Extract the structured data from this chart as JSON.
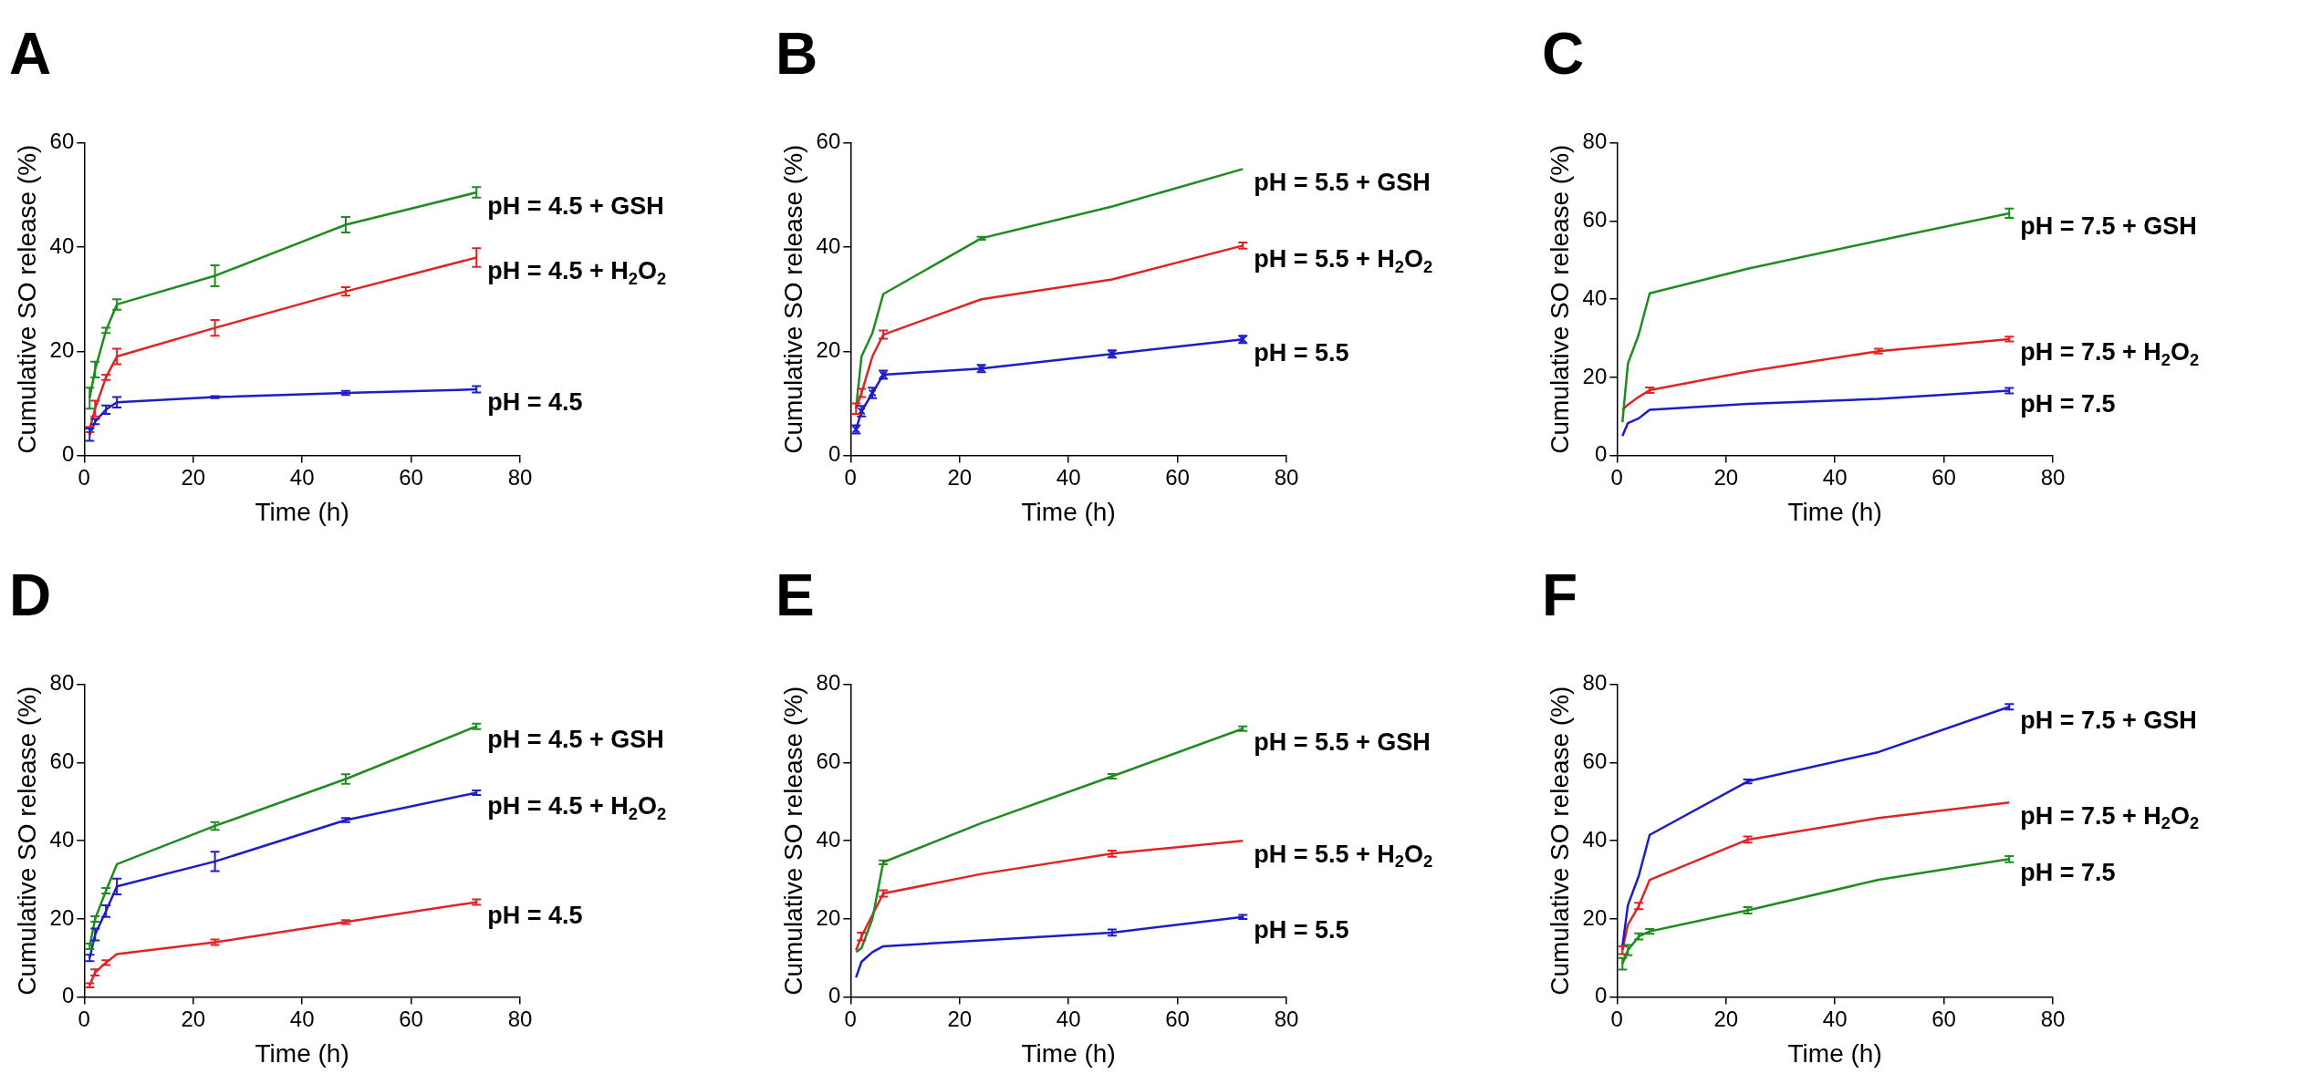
{
  "chart_data": [
    {
      "type": "line",
      "title": "A",
      "xlabel": "Time (h)",
      "ylabel": "Cumulative SO release (%)",
      "x": [
        1,
        2,
        4,
        6,
        24,
        48,
        72
      ],
      "xlim": [
        0,
        80
      ],
      "xticks": [
        0,
        20,
        40,
        60,
        80
      ],
      "ylim": [
        0,
        60
      ],
      "yticks": [
        0,
        20,
        40,
        60
      ],
      "grid": false,
      "legend": false,
      "series": [
        {
          "name": "pH = 4.5 + GSH",
          "color": "#1f8c1f",
          "values": [
            11,
            16.5,
            24,
            29,
            34.5,
            44.3,
            50.5
          ],
          "errors": [
            2,
            1.5,
            0.5,
            1,
            2,
            1.5,
            1
          ]
        },
        {
          "name": "pH = 4.5 + H$_{2}$O$_{2}$",
          "color": "#e02424",
          "values": [
            5,
            9,
            15,
            19,
            24.5,
            31.5,
            38
          ],
          "errors": [
            0.5,
            1.5,
            0.5,
            1.5,
            1.5,
            0.8,
            1.8
          ]
        },
        {
          "name": "pH = 4.5",
          "color": "#1c1cc8",
          "values": [
            4,
            6.5,
            8.8,
            10.2,
            11.2,
            12,
            12.7
          ],
          "errors": [
            1.2,
            0.5,
            0.8,
            1,
            0.2,
            0.4,
            0.6
          ]
        }
      ]
    },
    {
      "type": "line",
      "title": "B",
      "xlabel": "Time (h)",
      "ylabel": "Cumulative SO release (%)",
      "x": [
        1,
        2,
        4,
        6,
        24,
        48,
        72
      ],
      "xlim": [
        0,
        80
      ],
      "xticks": [
        0,
        20,
        40,
        60,
        80
      ],
      "ylim": [
        0,
        60
      ],
      "yticks": [
        0,
        20,
        40,
        60
      ],
      "grid": false,
      "legend": false,
      "series": [
        {
          "name": "pH = 5.5 + GSH",
          "color": "#1f8c1f",
          "values": [
            9,
            19,
            23.5,
            31,
            41.7,
            47.8,
            55
          ],
          "errors": [
            null,
            null,
            null,
            null,
            0.3,
            null,
            null
          ]
        },
        {
          "name": "pH = 5.5 + H$_{2}$O$_{2}$",
          "color": "#e02424",
          "values": [
            9,
            12,
            19,
            23.2,
            30,
            33.8,
            40.3
          ],
          "errors": [
            1,
            0.8,
            null,
            0.8,
            null,
            null,
            0.6
          ]
        },
        {
          "name": "pH = 5.5",
          "color": "#1c1cc8",
          "marker": "cross",
          "values": [
            5,
            8.5,
            12,
            15.5,
            16.7,
            19.5,
            22.3
          ],
          "errors": [
            0.8,
            1,
            1,
            0.8,
            0.7,
            0.7,
            0.7
          ]
        }
      ]
    },
    {
      "type": "line",
      "title": "C",
      "xlabel": "Time (h)",
      "ylabel": "Cumulative SO release (%)",
      "x": [
        1,
        2,
        4,
        6,
        24,
        48,
        72
      ],
      "xlim": [
        0,
        80
      ],
      "xticks": [
        0,
        20,
        40,
        60,
        80
      ],
      "ylim": [
        0,
        80
      ],
      "yticks": [
        0,
        20,
        40,
        60,
        80
      ],
      "grid": false,
      "legend": false,
      "series": [
        {
          "name": "pH = 7.5 + GSH",
          "color": "#1f8c1f",
          "values": [
            8.5,
            23.5,
            31,
            41.5,
            47.8,
            55,
            62
          ],
          "errors": [
            null,
            null,
            null,
            null,
            null,
            null,
            1.2
          ]
        },
        {
          "name": "pH = 7.5 + H$_{2}$O$_{2}$",
          "color": "#e02424",
          "values": [
            11.7,
            13,
            15,
            16.7,
            21.5,
            26.7,
            29.8
          ],
          "errors": [
            null,
            null,
            null,
            0.7,
            null,
            0.6,
            0.6
          ]
        },
        {
          "name": "pH = 7.5",
          "color": "#1c1cc8",
          "values": [
            5,
            8.3,
            9.5,
            11.7,
            13.2,
            14.5,
            16.6
          ],
          "errors": [
            null,
            null,
            null,
            null,
            null,
            null,
            0.7
          ]
        }
      ]
    },
    {
      "type": "line",
      "title": "D",
      "xlabel": "Time (h)",
      "ylabel": "Cumulative SO release (%)",
      "x": [
        1,
        2,
        4,
        6,
        24,
        48,
        72
      ],
      "xlim": [
        0,
        80
      ],
      "xticks": [
        0,
        20,
        40,
        60,
        80
      ],
      "ylim": [
        0,
        80
      ],
      "yticks": [
        0,
        20,
        40,
        60,
        80
      ],
      "grid": false,
      "legend": false,
      "series": [
        {
          "name": "pH = 4.5 + GSH",
          "color": "#1f8c1f",
          "values": [
            13,
            20,
            27.2,
            34,
            43.8,
            55.8,
            69.3
          ],
          "errors": [
            0.7,
            0.7,
            0.7,
            null,
            1,
            1.2,
            0.7
          ]
        },
        {
          "name": "pH = 4.5 + H$_{2}$O$_{2}$",
          "color": "#1c1cc8",
          "values": [
            10,
            16,
            22,
            28.3,
            34.7,
            45.3,
            52.3
          ],
          "errors": [
            0.8,
            1.5,
            1.5,
            2,
            2.5,
            0.5,
            0.6
          ]
        },
        {
          "name": "pH = 4.5",
          "color": "#e02424",
          "values": [
            3,
            6.3,
            8.8,
            11,
            14,
            19.2,
            24.3
          ],
          "errors": [
            0.5,
            0.8,
            0.6,
            null,
            0.7,
            0.5,
            0.7
          ]
        }
      ]
    },
    {
      "type": "line",
      "title": "E",
      "xlabel": "Time (h)",
      "ylabel": "Cumulative SO release (%)",
      "x": [
        1,
        2,
        4,
        6,
        24,
        48,
        72
      ],
      "xlim": [
        0,
        80
      ],
      "xticks": [
        0,
        20,
        40,
        60,
        80
      ],
      "ylim": [
        0,
        80
      ],
      "yticks": [
        0,
        20,
        40,
        60,
        80
      ],
      "grid": false,
      "legend": false,
      "series": [
        {
          "name": "pH = 5.5 + GSH",
          "color": "#1f8c1f",
          "values": [
            11.5,
            12.5,
            20,
            34.5,
            44.5,
            56.5,
            68.7
          ],
          "errors": [
            null,
            null,
            null,
            0.5,
            null,
            0.6,
            0.6
          ]
        },
        {
          "name": "pH = 5.5 + H$_{2}$O$_{2}$",
          "color": "#e02424",
          "values": [
            12,
            15.5,
            21,
            26.5,
            31.5,
            36.7,
            40
          ],
          "errors": [
            null,
            1,
            null,
            0.8,
            null,
            0.8,
            null
          ]
        },
        {
          "name": "pH = 5.5",
          "color": "#1c1cc8",
          "values": [
            5,
            9,
            11.5,
            13,
            14.5,
            16.5,
            20.5
          ],
          "errors": [
            null,
            null,
            null,
            null,
            null,
            0.8,
            0.5
          ]
        }
      ]
    },
    {
      "type": "line",
      "title": "F",
      "xlabel": "Time (h)",
      "ylabel": "Cumulative SO release (%)",
      "x": [
        1,
        2,
        4,
        6,
        24,
        48,
        72
      ],
      "xlim": [
        0,
        80
      ],
      "xticks": [
        0,
        20,
        40,
        60,
        80
      ],
      "ylim": [
        0,
        80
      ],
      "yticks": [
        0,
        20,
        40,
        60,
        80
      ],
      "grid": false,
      "legend": false,
      "series": [
        {
          "name": "pH = 7.5 + GSH",
          "color": "#1c1cc8",
          "values": [
            13,
            23.5,
            31,
            41.5,
            55.2,
            62.7,
            74.3
          ],
          "errors": [
            null,
            null,
            null,
            null,
            0.5,
            null,
            0.7
          ]
        },
        {
          "name": "pH = 7.5 + H$_{2}$O$_{2}$",
          "color": "#e02424",
          "values": [
            12,
            18.5,
            23.3,
            30,
            40.3,
            45.8,
            49.8
          ],
          "errors": [
            1,
            null,
            0.8,
            null,
            0.8,
            null,
            null
          ]
        },
        {
          "name": "pH = 7.5",
          "color": "#1f8c1f",
          "values": [
            8.5,
            12,
            15.5,
            16.8,
            22.2,
            30,
            35.3
          ],
          "errors": [
            1.5,
            1.3,
            0.8,
            0.6,
            0.8,
            null,
            0.8
          ]
        }
      ]
    }
  ]
}
